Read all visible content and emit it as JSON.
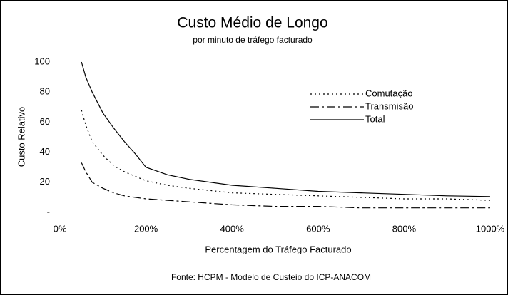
{
  "chart_data": {
    "type": "line",
    "title": "Custo Médio de Longo",
    "subtitle": "por minuto de tráfego facturado",
    "x_label": "Percentagem do Tráfego Facturado",
    "y_label": "Custo Relativo",
    "source": "Fonte: HCPM - Modelo de Custeio do ICP-ANACOM",
    "x": [
      50,
      60,
      75,
      100,
      125,
      150,
      175,
      200,
      250,
      300,
      400,
      500,
      600,
      700,
      800,
      900,
      1000
    ],
    "series": [
      {
        "name": "Comutação",
        "color": "#000000",
        "dash": "dotted",
        "values": [
          68,
          58,
          47,
          38,
          31,
          27,
          24,
          21,
          18,
          16,
          13,
          12,
          11,
          10,
          9,
          9,
          8
        ]
      },
      {
        "name": "Transmisão",
        "color": "#000000",
        "dash": "dashdot",
        "values": [
          33,
          27,
          20,
          16,
          13,
          11,
          10,
          9,
          8,
          7,
          5,
          4,
          4,
          3,
          3,
          3,
          3
        ]
      },
      {
        "name": "Total",
        "color": "#000000",
        "dash": "solid",
        "values": [
          100,
          90,
          80,
          66,
          56,
          47,
          39,
          30,
          25,
          22,
          18,
          16,
          14,
          13,
          12,
          11,
          10.5
        ]
      }
    ],
    "xlim": [
      0,
      1000
    ],
    "xticks": [
      {
        "value": 0,
        "label": "0%"
      },
      {
        "value": 200,
        "label": "200%"
      },
      {
        "value": 400,
        "label": "400%"
      },
      {
        "value": 600,
        "label": "600%"
      },
      {
        "value": 800,
        "label": "800%"
      },
      {
        "value": 1000,
        "label": "1000%"
      }
    ],
    "ylim": [
      0,
      100
    ],
    "yticks": [
      {
        "value": 0,
        "label": "-"
      },
      20,
      40,
      60,
      80,
      100
    ],
    "grid": false
  }
}
